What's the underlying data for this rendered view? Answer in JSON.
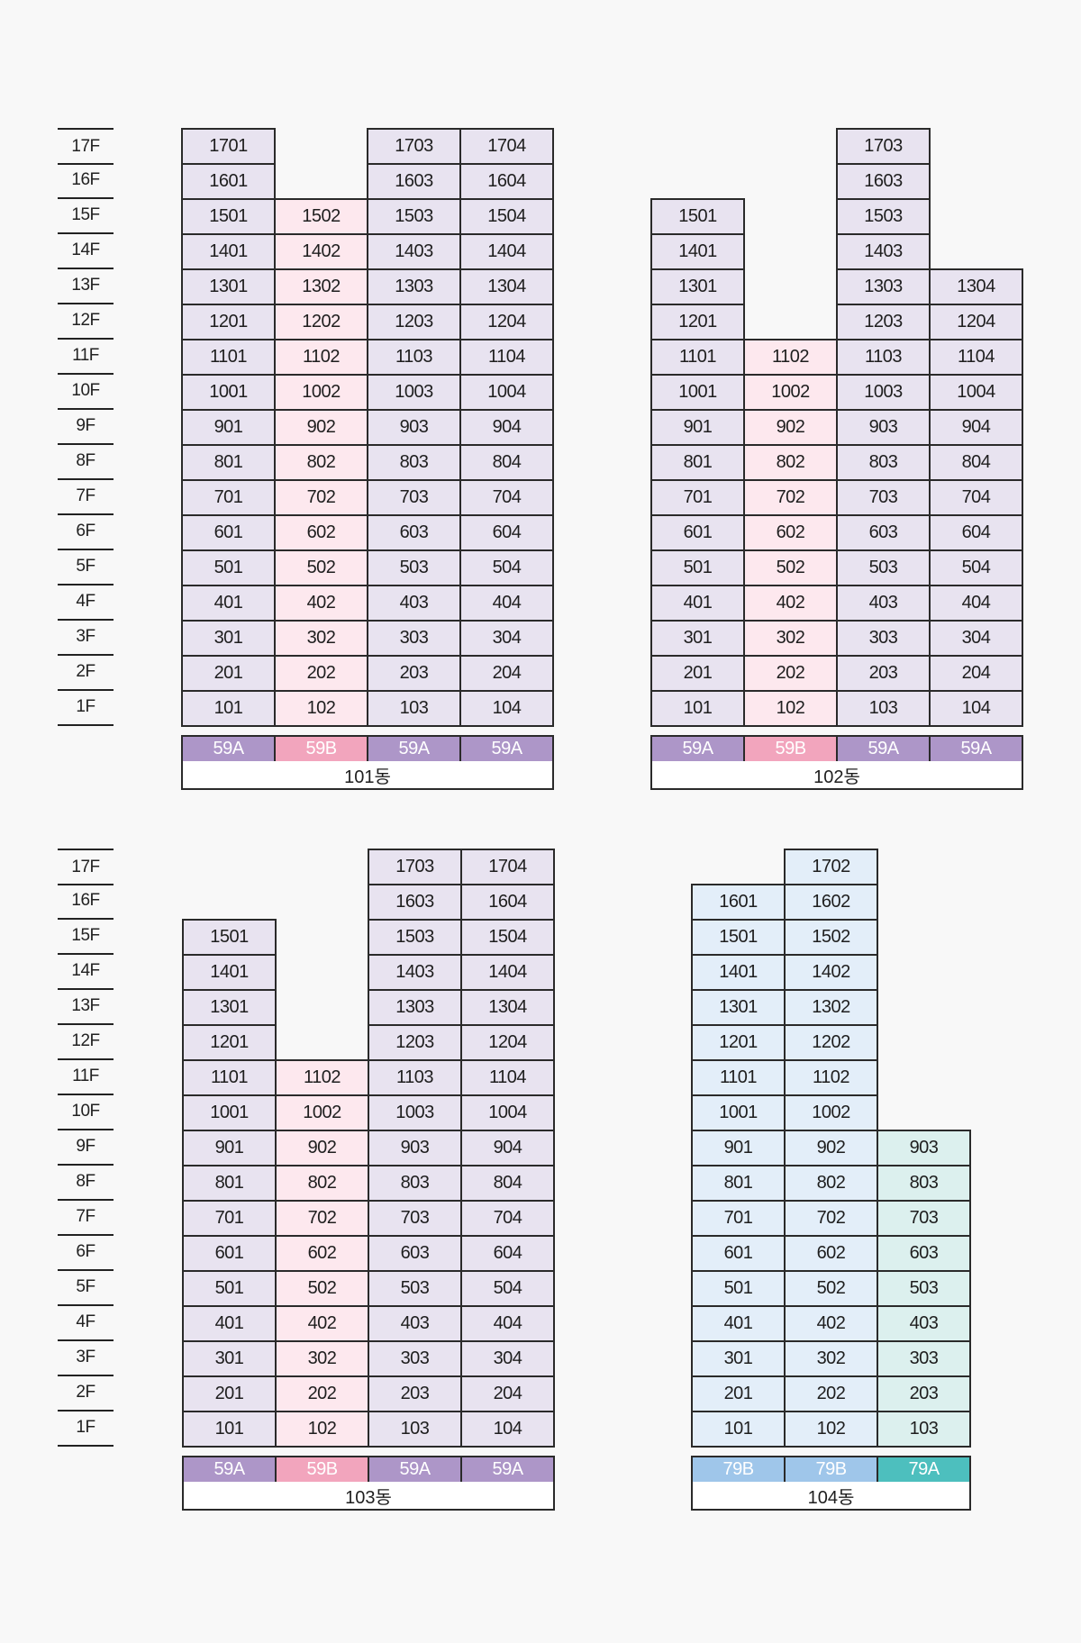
{
  "floors": [
    "17F",
    "16F",
    "15F",
    "14F",
    "13F",
    "12F",
    "11F",
    "10F",
    "9F",
    "8F",
    "7F",
    "6F",
    "5F",
    "4F",
    "3F",
    "2F",
    "1F"
  ],
  "colors": {
    "59A_unit": "#e8e3f0",
    "59B_unit": "#fde8ee",
    "79B_unit": "#e3eef9",
    "79A_unit": "#dcf0ee",
    "59A_type": "#ad96c8",
    "59B_type": "#f2a5bd",
    "79B_type": "#9fc6ea",
    "79A_type": "#4dbfbe"
  },
  "buildings": [
    {
      "name": "101동",
      "columns": [
        {
          "type": "59A",
          "units": [
            "1701",
            "1601",
            "1501",
            "1401",
            "1301",
            "1201",
            "1101",
            "1001",
            "901",
            "801",
            "701",
            "601",
            "501",
            "401",
            "301",
            "201",
            "101"
          ]
        },
        {
          "type": "59B",
          "units": [
            "1502",
            "1402",
            "1302",
            "1202",
            "1102",
            "1002",
            "902",
            "802",
            "702",
            "602",
            "502",
            "402",
            "302",
            "202",
            "102"
          ]
        },
        {
          "type": "59A",
          "units": [
            "1703",
            "1603",
            "1503",
            "1403",
            "1303",
            "1203",
            "1103",
            "1003",
            "903",
            "803",
            "703",
            "603",
            "503",
            "403",
            "303",
            "203",
            "103"
          ]
        },
        {
          "type": "59A",
          "units": [
            "1704",
            "1604",
            "1504",
            "1404",
            "1304",
            "1204",
            "1104",
            "1004",
            "904",
            "804",
            "704",
            "604",
            "504",
            "404",
            "304",
            "204",
            "104"
          ]
        }
      ]
    },
    {
      "name": "102동",
      "columns": [
        {
          "type": "59A",
          "units": [
            "1501",
            "1401",
            "1301",
            "1201",
            "1101",
            "1001",
            "901",
            "801",
            "701",
            "601",
            "501",
            "401",
            "301",
            "201",
            "101"
          ]
        },
        {
          "type": "59B",
          "units": [
            "1102",
            "1002",
            "902",
            "802",
            "702",
            "602",
            "502",
            "402",
            "302",
            "202",
            "102"
          ]
        },
        {
          "type": "59A",
          "units": [
            "1703",
            "1603",
            "1503",
            "1403",
            "1303",
            "1203",
            "1103",
            "1003",
            "903",
            "803",
            "703",
            "603",
            "503",
            "403",
            "303",
            "203",
            "103"
          ]
        },
        {
          "type": "59A",
          "units": [
            "1304",
            "1204",
            "1104",
            "1004",
            "904",
            "804",
            "704",
            "604",
            "504",
            "404",
            "304",
            "204",
            "104"
          ]
        }
      ]
    },
    {
      "name": "103동",
      "columns": [
        {
          "type": "59A",
          "units": [
            "1501",
            "1401",
            "1301",
            "1201",
            "1101",
            "1001",
            "901",
            "801",
            "701",
            "601",
            "501",
            "401",
            "301",
            "201",
            "101"
          ]
        },
        {
          "type": "59B",
          "units": [
            "1102",
            "1002",
            "902",
            "802",
            "702",
            "602",
            "502",
            "402",
            "302",
            "202",
            "102"
          ]
        },
        {
          "type": "59A",
          "units": [
            "1703",
            "1603",
            "1503",
            "1403",
            "1303",
            "1203",
            "1103",
            "1003",
            "903",
            "803",
            "703",
            "603",
            "503",
            "403",
            "303",
            "203",
            "103"
          ]
        },
        {
          "type": "59A",
          "units": [
            "1704",
            "1604",
            "1504",
            "1404",
            "1304",
            "1204",
            "1104",
            "1004",
            "904",
            "804",
            "704",
            "604",
            "504",
            "404",
            "304",
            "204",
            "104"
          ]
        }
      ]
    },
    {
      "name": "104동",
      "columns": [
        {
          "type": "79B",
          "units": [
            "1601",
            "1501",
            "1401",
            "1301",
            "1201",
            "1101",
            "1001",
            "901",
            "801",
            "701",
            "601",
            "501",
            "401",
            "301",
            "201",
            "101"
          ]
        },
        {
          "type": "79B",
          "units": [
            "1702",
            "1602",
            "1502",
            "1402",
            "1302",
            "1202",
            "1102",
            "1002",
            "902",
            "802",
            "702",
            "602",
            "502",
            "402",
            "302",
            "202",
            "102"
          ]
        },
        {
          "type": "79A",
          "units": [
            "903",
            "803",
            "703",
            "603",
            "503",
            "403",
            "303",
            "203",
            "103"
          ]
        }
      ]
    }
  ]
}
